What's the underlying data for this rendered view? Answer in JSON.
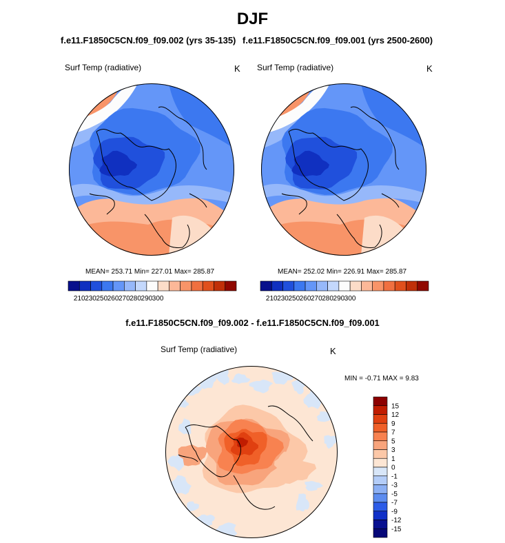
{
  "season": "DJF",
  "panels": [
    {
      "run": "f.e11.F1850C5CN.f09_f09.002 (yrs 35-135)",
      "variable": "Surf Temp (radiative)",
      "units": "K",
      "stats": {
        "mean": "253.71",
        "min": "227.01",
        "max": "285.87"
      }
    },
    {
      "run": "f.e11.F1850C5CN.f09_f09.001 (yrs 2500-2600)",
      "variable": "Surf Temp (radiative)",
      "units": "K",
      "stats": {
        "mean": "252.02",
        "min": "226.91",
        "max": "285.87"
      }
    }
  ],
  "difference": {
    "title": "f.e11.F1850C5CN.f09_f09.002 - f.e11.F1850C5CN.f09_f09.001",
    "variable": "Surf Temp (radiative)",
    "units": "K",
    "minmax_text": "MIN =  -0.71 MAX =   9.83"
  },
  "chart_data": [
    {
      "type": "heatmap",
      "projection": "north-polar-stereographic",
      "title": "f.e11.F1850C5CN.f09_f09.002 (yrs 35-135)",
      "variable": "Surf Temp (radiative)",
      "units": "K",
      "mean": 253.71,
      "min": 227.01,
      "max": 285.87,
      "colorbar_ticks": [
        "210",
        "230",
        "250",
        "260",
        "270",
        "280",
        "290",
        "300"
      ],
      "colorbar_orientation": "horizontal"
    },
    {
      "type": "heatmap",
      "projection": "north-polar-stereographic",
      "title": "f.e11.F1850C5CN.f09_f09.001 (yrs 2500-2600)",
      "variable": "Surf Temp (radiative)",
      "units": "K",
      "mean": 252.02,
      "min": 226.91,
      "max": 285.87,
      "colorbar_ticks": [
        "210",
        "230",
        "250",
        "260",
        "270",
        "280",
        "290",
        "300"
      ],
      "colorbar_orientation": "horizontal"
    },
    {
      "type": "heatmap",
      "projection": "north-polar-stereographic",
      "title": "f.e11.F1850C5CN.f09_f09.002 - f.e11.F1850C5CN.f09_f09.001",
      "variable": "Surf Temp (radiative)",
      "units": "K",
      "min": -0.71,
      "max": 9.83,
      "colorbar_ticks": [
        "15",
        "12",
        "9",
        "7",
        "5",
        "3",
        "1",
        "0",
        "-1",
        "-3",
        "-5",
        "-7",
        "-9",
        "-12",
        "-15"
      ],
      "colorbar_orientation": "vertical"
    }
  ],
  "colors": {
    "abs_scale": [
      "#08108c",
      "#1030c0",
      "#2050dc",
      "#3c78f0",
      "#6496f8",
      "#96b8fa",
      "#c4d8fc",
      "#fcfcfc",
      "#fcdcc8",
      "#fcb898",
      "#f89468",
      "#f07040",
      "#e0501c",
      "#c03008",
      "#900800"
    ],
    "diff_scale": [
      "#8c0000",
      "#c01c00",
      "#e04010",
      "#f06028",
      "#f88250",
      "#f8a47c",
      "#fcc8a8",
      "#fde6d4",
      "#d8e6f8",
      "#b4cdf8",
      "#8cb0f4",
      "#5c8cf0",
      "#2c5ce8",
      "#1030c8",
      "#081090",
      "#060878"
    ],
    "land_outline": "#000000"
  }
}
